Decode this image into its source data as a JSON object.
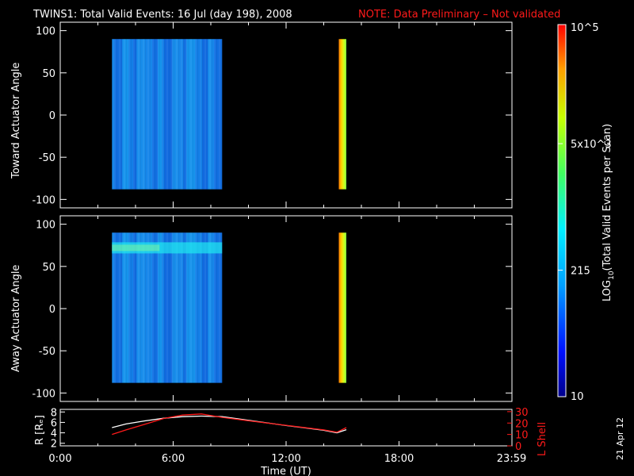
{
  "title": "TWINS1: Total Valid Events: 16 Jul (day 198), 2008",
  "note": "NOTE: Data Preliminary – Not validated",
  "stamp": "21 Apr 12",
  "chart_data": [
    {
      "type": "heatmap",
      "ylabel": "Toward Actuator Angle",
      "ylim": [
        -110,
        110
      ],
      "yticks": [
        -100,
        -50,
        0,
        50,
        100
      ],
      "xlim": [
        0,
        24
      ],
      "blocks": [
        {
          "x_start": 2.75,
          "x_end": 8.6,
          "y_min": -88,
          "y_max": 90,
          "level": "low"
        },
        {
          "x_start": 14.8,
          "x_end": 15.2,
          "y_min": -88,
          "y_max": 90,
          "level": "high"
        }
      ]
    },
    {
      "type": "heatmap",
      "ylabel": "Away Actuator Angle",
      "ylim": [
        -110,
        110
      ],
      "yticks": [
        -100,
        -50,
        0,
        50,
        100
      ],
      "xlim": [
        0,
        24
      ],
      "blocks": [
        {
          "x_start": 2.75,
          "x_end": 8.6,
          "y_min": -88,
          "y_max": 90,
          "level": "low",
          "band_center": 72
        },
        {
          "x_start": 14.8,
          "x_end": 15.2,
          "y_min": -88,
          "y_max": 90,
          "level": "high"
        }
      ]
    },
    {
      "type": "line",
      "xlabel": "Time (UT)",
      "xticks": [
        "0:00",
        "6:00",
        "12:00",
        "18:00",
        "23:59"
      ],
      "xtick_values": [
        0,
        6,
        12,
        18,
        23.98
      ],
      "xlim": [
        0,
        24
      ],
      "left_axis": {
        "label": "R [Rₑ]",
        "ylim": [
          1.5,
          8.5
        ],
        "ticks": [
          2,
          4,
          6,
          8
        ]
      },
      "right_axis": {
        "label": "L Shell",
        "ylim": [
          0,
          32
        ],
        "ticks": [
          0,
          10,
          20,
          30
        ],
        "color": "#ff1a1a"
      },
      "series": [
        {
          "axis": "left",
          "color": "#ffffff",
          "x": [
            2.75,
            3.5,
            4.5,
            5.5,
            6.5,
            7.5,
            8.6,
            10,
            12,
            14,
            14.7,
            15.2
          ],
          "y": [
            5.0,
            5.7,
            6.3,
            6.8,
            7.1,
            7.2,
            7.1,
            6.4,
            5.4,
            4.5,
            4.0,
            4.6
          ]
        },
        {
          "axis": "right",
          "color": "#ff1a1a",
          "x": [
            2.75,
            3.5,
            4.5,
            5.5,
            6.5,
            7.5,
            8.6,
            10,
            12,
            14,
            14.7,
            15.2
          ],
          "y": [
            10,
            14,
            19,
            24,
            27,
            28,
            25,
            22,
            18,
            14,
            12,
            16
          ]
        }
      ]
    }
  ],
  "colorbar": {
    "label": "LOG10(Total Valid Events per Scan)",
    "tick_labels": [
      "10",
      "215",
      "5x10^3",
      "10^5"
    ],
    "tick_fractions": [
      0.0,
      0.34,
      0.68,
      1.0
    ]
  }
}
